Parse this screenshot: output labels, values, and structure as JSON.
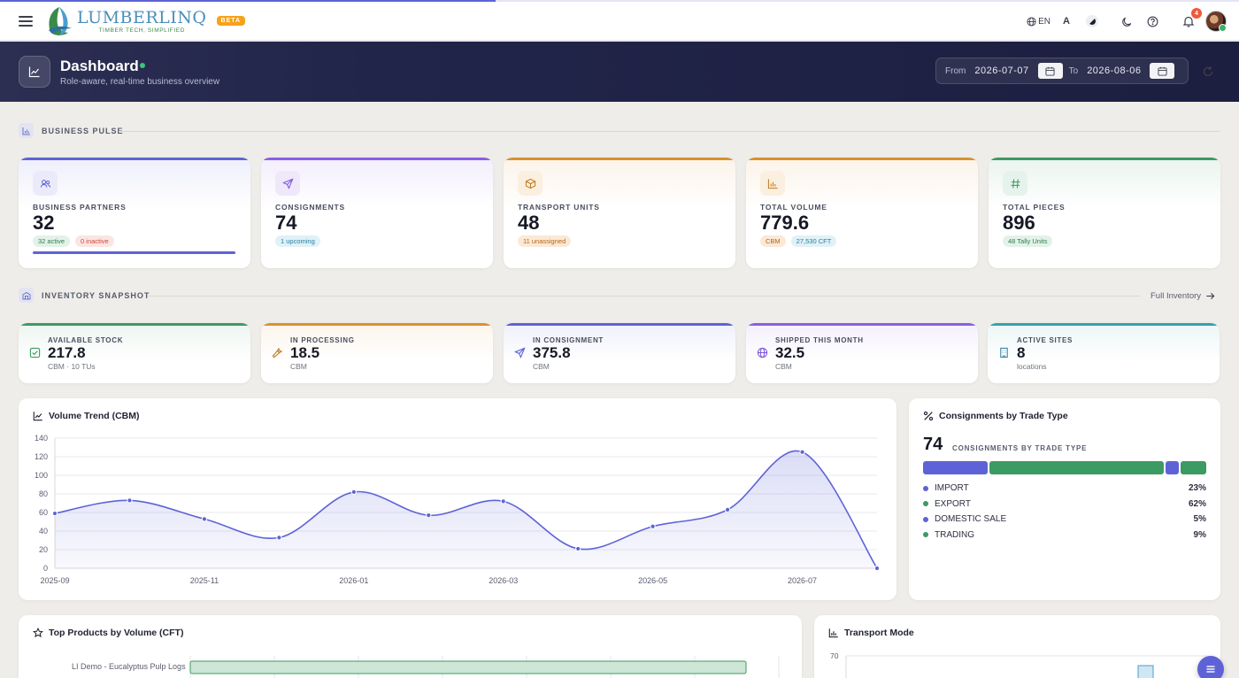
{
  "loading_progress": 0.4,
  "header": {
    "brand_name": "LUMBERLINQ",
    "brand_tagline": "TIMBER TECH, SIMPLIFIED",
    "beta_label": "BETA",
    "language": "EN",
    "font_size_label": "A",
    "notification_count": "4"
  },
  "banner": {
    "title": "Dashboard",
    "subtitle": "Role-aware, real-time business overview",
    "from_label": "From",
    "from_date": "2026-07-07",
    "to_label": "To",
    "to_date": "2026-08-06"
  },
  "business_pulse": {
    "title": "BUSINESS PULSE",
    "cards": [
      {
        "label": "BUSINESS PARTNERS",
        "value": "32",
        "chips": [
          "32 active",
          "0 inactive"
        ],
        "active_fraction": 1.0,
        "accent": "#5d63d6"
      },
      {
        "label": "CONSIGNMENTS",
        "value": "74",
        "chips": [
          "1 upcoming"
        ],
        "accent": "#8a5ee6"
      },
      {
        "label": "TRANSPORT UNITS",
        "value": "48",
        "chips": [
          "11 unassigned"
        ],
        "accent": "#d9912f"
      },
      {
        "label": "TOTAL VOLUME",
        "value": "779.6",
        "chips": [
          "CBM",
          "27,530 CFT"
        ],
        "accent": "#d9912f"
      },
      {
        "label": "TOTAL PIECES",
        "value": "896",
        "chips": [
          "48 Tally Units"
        ],
        "accent": "#3c9a63"
      }
    ]
  },
  "inventory": {
    "title": "INVENTORY SNAPSHOT",
    "link_label": "Full Inventory",
    "cards": [
      {
        "label": "AVAILABLE STOCK",
        "value": "217.8",
        "unit": "CBM · 10 TUs",
        "accent": "#3c9a63"
      },
      {
        "label": "IN PROCESSING",
        "value": "18.5",
        "unit": "CBM",
        "accent": "#d9912f"
      },
      {
        "label": "IN CONSIGNMENT",
        "value": "375.8",
        "unit": "CBM",
        "accent": "#5d63d6"
      },
      {
        "label": "SHIPPED THIS MONTH",
        "value": "32.5",
        "unit": "CBM",
        "accent": "#8a5ee6"
      },
      {
        "label": "ACTIVE SITES",
        "value": "8",
        "unit": "locations",
        "accent": "#3aa0a8"
      }
    ]
  },
  "volume_trend": {
    "title": "Volume Trend (CBM)",
    "chart_data": {
      "type": "area",
      "x": [
        "2025-09",
        "2025-10",
        "2025-11",
        "2025-12",
        "2026-01",
        "2026-02",
        "2026-03",
        "2026-04",
        "2026-05",
        "2026-06",
        "2026-07",
        "2026-08"
      ],
      "x_tick_labels": [
        "2025-09",
        "2025-11",
        "2026-01",
        "2026-03",
        "2026-05",
        "2026-07"
      ],
      "values": [
        59,
        73,
        53,
        33,
        82,
        57,
        72,
        21,
        45,
        63,
        125,
        0
      ],
      "y_ticks": [
        0,
        20,
        40,
        60,
        80,
        100,
        120,
        140
      ],
      "ylim": [
        0,
        140
      ],
      "grid": true,
      "color": "#5d63d6"
    }
  },
  "trade_type": {
    "title": "Consignments by Trade Type",
    "total": "74",
    "total_label": "CONSIGNMENTS BY TRADE TYPE",
    "chart_data": {
      "type": "bar",
      "categories": [
        "IMPORT",
        "EXPORT",
        "DOMESTIC SALE",
        "TRADING"
      ],
      "values": [
        23,
        62,
        5,
        9
      ],
      "labels": [
        "23%",
        "62%",
        "5%",
        "9%"
      ],
      "colors": [
        "#5d63d6",
        "#3c9a63",
        "#5d63d6",
        "#3c9a63"
      ]
    }
  },
  "top_products": {
    "title": "Top Products by Volume (CFT)",
    "first_item": "LI Demo - Eucalyptus Pulp Logs"
  },
  "transport_mode": {
    "title": "Transport Mode",
    "y_top_tick": "70"
  }
}
